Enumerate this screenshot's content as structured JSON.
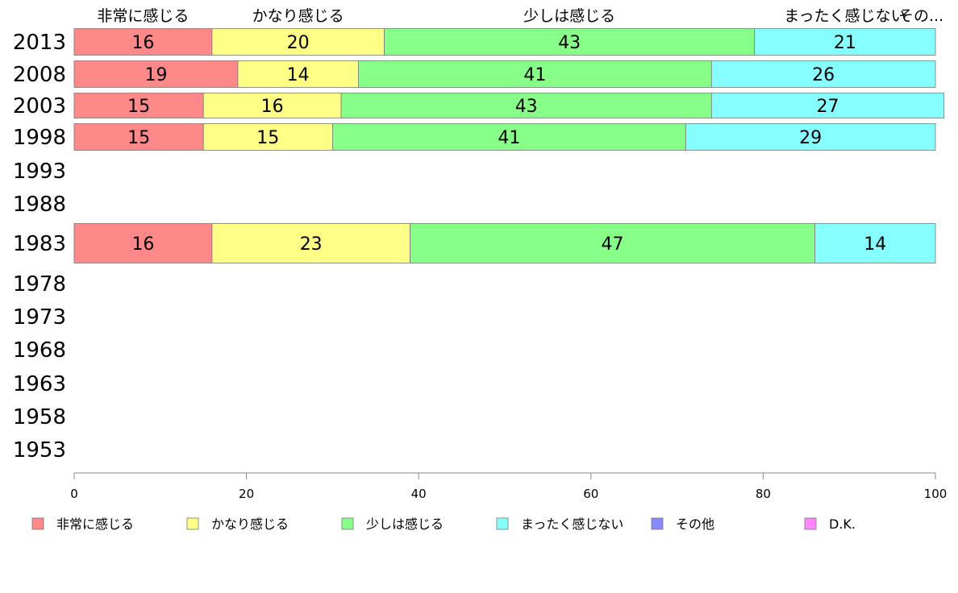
{
  "chart_data": {
    "type": "bar",
    "orientation": "horizontal",
    "stacked": true,
    "categories": [
      "2013",
      "2008",
      "2003",
      "1998",
      "1993",
      "1988",
      "1983",
      "1978",
      "1973",
      "1968",
      "1963",
      "1958",
      "1953"
    ],
    "series": [
      {
        "name": "非常に感じる",
        "color": "#ff8888",
        "values": [
          16,
          19,
          15,
          15,
          null,
          null,
          16,
          null,
          null,
          null,
          null,
          null,
          null
        ]
      },
      {
        "name": "かなり感じる",
        "color": "#ffff88",
        "values": [
          20,
          14,
          16,
          15,
          null,
          null,
          23,
          null,
          null,
          null,
          null,
          null,
          null
        ]
      },
      {
        "name": "少しは感じる",
        "color": "#88ff88",
        "values": [
          43,
          41,
          43,
          41,
          null,
          null,
          47,
          null,
          null,
          null,
          null,
          null,
          null
        ]
      },
      {
        "name": "まったく感じない",
        "color": "#88ffff",
        "values": [
          21,
          26,
          27,
          29,
          null,
          null,
          14,
          null,
          null,
          null,
          null,
          null,
          null
        ]
      },
      {
        "name": "その他",
        "color": "#8888ff",
        "values": [
          0,
          0,
          0,
          0,
          null,
          null,
          0,
          null,
          null,
          null,
          null,
          null,
          null
        ]
      },
      {
        "name": "D.K.",
        "color": "#ff88ff",
        "values": [
          0,
          0,
          0,
          0,
          null,
          null,
          0,
          null,
          null,
          null,
          null,
          null,
          null
        ]
      }
    ],
    "top_labels": [
      "非常に感じる",
      "かなり感じる",
      "少しは感じる",
      "まったく感じない",
      "その..."
    ],
    "xlim": [
      0,
      100
    ],
    "xticks": [
      0,
      20,
      40,
      60,
      80,
      100
    ],
    "title": "",
    "xlabel": "",
    "ylabel": "",
    "grid": false,
    "legend_position": "bottom"
  }
}
